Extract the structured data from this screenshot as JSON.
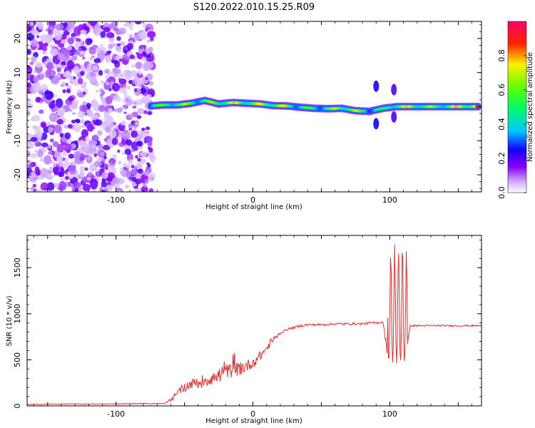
{
  "title": "S120.2022.010.15.25.R09",
  "colorbar": {
    "label": "Normalized spectral amplitude",
    "ticks": [
      "0.0",
      "0.2",
      "0.4",
      "0.6",
      "0.8"
    ],
    "tick_values": [
      0.0,
      0.2,
      0.4,
      0.6,
      0.8
    ],
    "range": [
      0,
      1
    ],
    "colormap": [
      "#ffffff",
      "#8800ff",
      "#0000ff",
      "#00ffff",
      "#00ff00",
      "#ffff00",
      "#ff0000",
      "#ff0066"
    ]
  },
  "chart_data": [
    {
      "type": "heatmap",
      "title": "",
      "xlabel": "Height of straight line (km)",
      "ylabel": "Frequency (Hz)",
      "xlim": [
        -165,
        167
      ],
      "ylim": [
        -25,
        25
      ],
      "xticks": [
        -100,
        0,
        100
      ],
      "xtick_labels": [
        "-100",
        "0",
        "100"
      ],
      "yticks": [
        -20,
        -10,
        0,
        10,
        20
      ],
      "ytick_labels": [
        "-20",
        "-10",
        "0",
        "10",
        "20"
      ],
      "grid": false,
      "noise_region_x": [
        -165,
        -73
      ],
      "ridge": {
        "x": [
          -75,
          -65,
          -55,
          -45,
          -35,
          -25,
          -15,
          -5,
          5,
          15,
          25,
          35,
          45,
          55,
          65,
          75,
          85,
          95,
          105,
          115,
          125,
          135,
          145,
          155,
          165
        ],
        "freq_hz": [
          0.2,
          0.5,
          0.5,
          1.0,
          1.8,
          0.8,
          1.2,
          1.0,
          0.8,
          0.3,
          0.2,
          -0.2,
          -0.5,
          -0.6,
          -0.5,
          -1.2,
          -1.4,
          -0.5,
          0.0,
          0.0,
          0.0,
          0.0,
          0.0,
          0.0,
          0.0
        ],
        "amplitude": [
          0.55,
          0.6,
          0.7,
          0.65,
          0.6,
          0.75,
          0.8,
          0.7,
          0.75,
          0.8,
          0.7,
          0.55,
          0.55,
          0.6,
          0.8,
          0.7,
          0.55,
          0.5,
          0.75,
          0.8,
          0.7,
          0.65,
          0.75,
          0.9,
          0.95
        ]
      }
    },
    {
      "type": "line",
      "title": "",
      "xlabel": "Height of straight line (km)",
      "ylabel": "SNR (10 * v/v)",
      "xlim": [
        -165,
        167
      ],
      "ylim": [
        0,
        1850
      ],
      "xticks": [
        -100,
        0,
        100
      ],
      "xtick_labels": [
        "-100",
        "0",
        "100"
      ],
      "yticks": [
        0,
        500,
        1000,
        1500
      ],
      "ytick_labels": [
        "0",
        "500",
        "1000",
        "1500"
      ],
      "grid": false,
      "series": [
        {
          "color": "#e83030",
          "x": [
            -165,
            -140,
            -110,
            -80,
            -65,
            -60,
            -55,
            -50,
            -45,
            -40,
            -35,
            -30,
            -25,
            -20,
            -15,
            -10,
            -5,
            0,
            5,
            10,
            15,
            20,
            25,
            30,
            35,
            40,
            50,
            60,
            70,
            80,
            85,
            90,
            95,
            98,
            100,
            102,
            105,
            108,
            110,
            112,
            115,
            130,
            150,
            167
          ],
          "values": [
            15,
            20,
            20,
            25,
            25,
            60,
            150,
            200,
            240,
            250,
            280,
            300,
            330,
            370,
            390,
            400,
            430,
            470,
            540,
            620,
            720,
            790,
            830,
            850,
            870,
            880,
            880,
            890,
            890,
            890,
            900,
            900,
            910,
            600,
            1500,
            700,
            1300,
            600,
            1100,
            600,
            870,
            870,
            870,
            870
          ]
        }
      ]
    }
  ]
}
